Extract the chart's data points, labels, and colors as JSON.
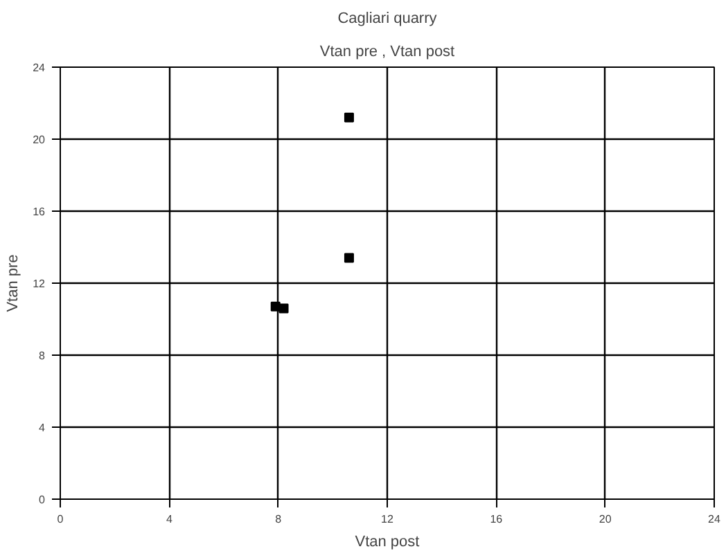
{
  "chart_data": {
    "type": "scatter",
    "title": "Cagliari quarry",
    "subtitle": "Vtan pre , Vtan post",
    "xlabel": "Vtan post",
    "ylabel": "Vtan pre",
    "x": [
      10.6,
      10.6,
      7.9,
      8.2
    ],
    "series": [
      {
        "color": "#000000",
        "values": [
          21.2,
          13.4,
          10.7,
          10.6
        ]
      }
    ],
    "xlim": [
      0,
      24
    ],
    "ylim": [
      0,
      24
    ],
    "xticks": [
      0,
      4,
      8,
      12,
      16,
      20,
      24
    ],
    "yticks": [
      0,
      4,
      8,
      12,
      16,
      20,
      24
    ],
    "grid": true,
    "marker": "square"
  }
}
